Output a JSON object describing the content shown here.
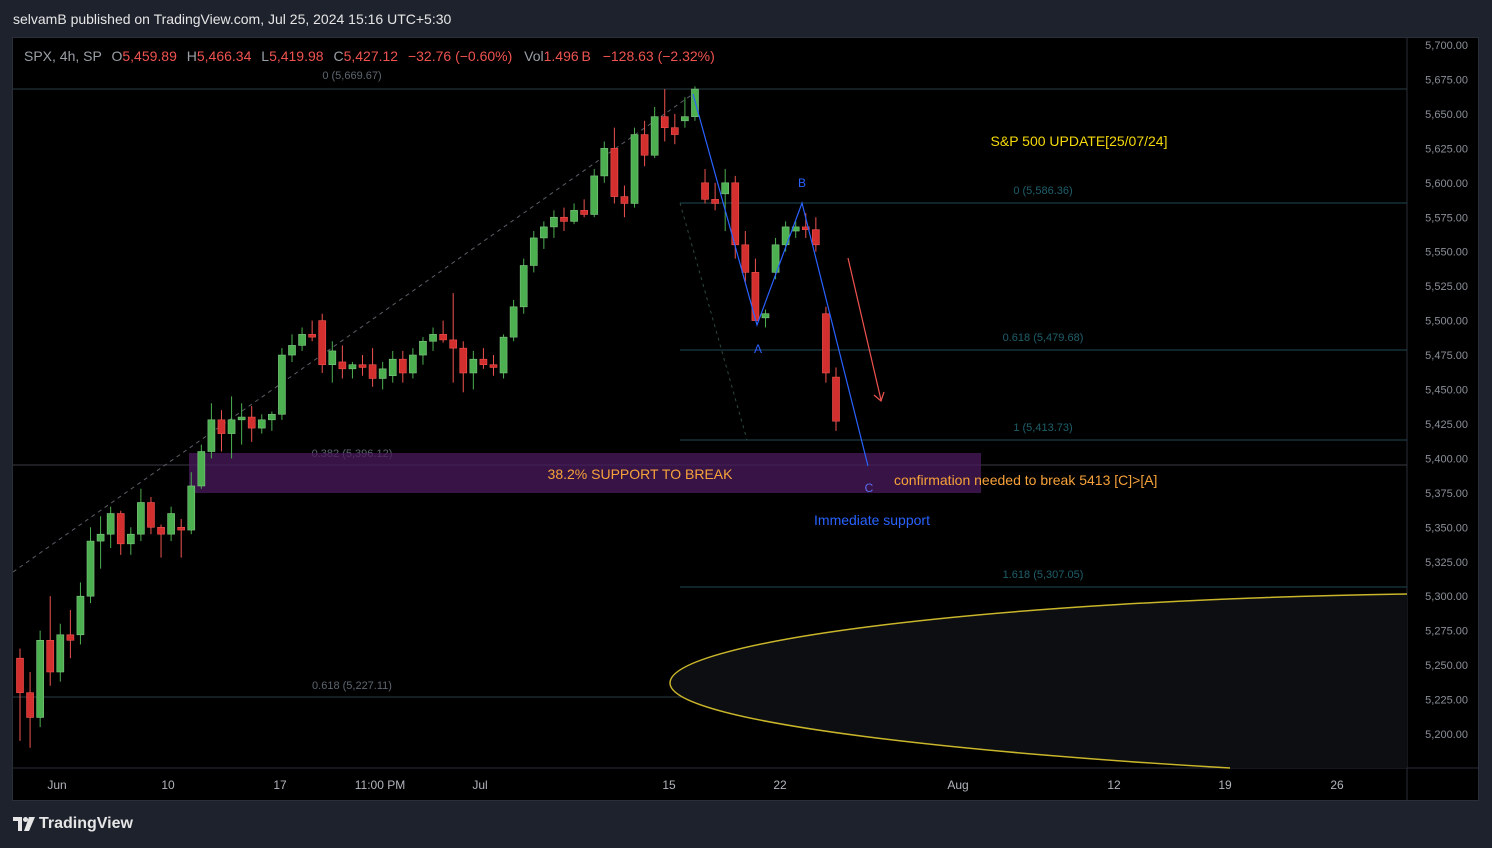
{
  "publisher_line": "selvamB published on TradingView.com, Jul 25, 2024 15:16 UTC+5:30",
  "footer_brand": "TradingView",
  "legend": {
    "symbol": "SPX, 4h, SP",
    "o_label": "O",
    "o_value": "5,459.89",
    "h_label": "H",
    "h_value": "5,466.34",
    "l_label": "L",
    "l_value": "5,419.98",
    "c_label": "C",
    "c_value": "5,427.12",
    "change": "−32.76 (−0.60%)",
    "vol_label": "Vol",
    "vol_value": "1.496 B",
    "vol_change": "−128.63 (−2.32%)"
  },
  "colors": {
    "up": "#26a69a",
    "up_body": "#4caf50",
    "down": "#ef5350",
    "down_body": "#d32f2f",
    "label_orange": "#f7a23a",
    "fib_teal": "#1f5f6b",
    "wave_blue": "#2962ff",
    "title_yellow": "#f5d90a"
  },
  "price_axis": {
    "ticks": [
      "5,700.00",
      "5,675.00",
      "5,650.00",
      "5,625.00",
      "5,600.00",
      "5,575.00",
      "5,550.00",
      "5,525.00",
      "5,500.00",
      "5,475.00",
      "5,450.00",
      "5,425.00",
      "5,400.00",
      "5,375.00",
      "5,350.00",
      "5,325.00",
      "5,300.00",
      "5,275.00",
      "5,250.00",
      "5,225.00",
      "5,200.00"
    ]
  },
  "time_axis": {
    "ticks": [
      "Jun",
      "10",
      "17",
      "11:00 PM",
      "Jul",
      "15",
      "22",
      "Aug",
      "12",
      "19",
      "26"
    ]
  },
  "annotations": {
    "title": "S&P 500 UPDATE[25/07/24]",
    "support_box": "38.2% SUPPORT TO BREAK",
    "confirmation": "confirmation needed to break 5413 [C]>[A]",
    "immediate_support": "Immediate support",
    "wave_a": "A",
    "wave_b": "B",
    "wave_c": "C"
  },
  "fib_levels_left": [
    {
      "label": "0 (5,669.67)"
    },
    {
      "label": "0.382 (5,396.12)"
    },
    {
      "label": "0.618 (5,227.11)"
    }
  ],
  "fib_levels_right": [
    {
      "label": "0 (5,586.36)"
    },
    {
      "label": "0.618 (5,479.68)"
    },
    {
      "label": "1 (5,413.73)"
    },
    {
      "label": "1.618 (5,307.05)"
    }
  ],
  "chart_data": {
    "type": "candlestick",
    "symbol": "SPX",
    "interval": "4h",
    "ylim": [
      5180,
      5710
    ],
    "candles": [
      [
        5255,
        5262,
        5195,
        5230
      ],
      [
        5230,
        5245,
        5190,
        5212
      ],
      [
        5212,
        5275,
        5205,
        5268
      ],
      [
        5268,
        5300,
        5235,
        5245
      ],
      [
        5245,
        5280,
        5238,
        5272
      ],
      [
        5272,
        5290,
        5255,
        5268
      ],
      [
        5272,
        5310,
        5265,
        5300
      ],
      [
        5300,
        5350,
        5295,
        5340
      ],
      [
        5340,
        5358,
        5320,
        5345
      ],
      [
        5345,
        5365,
        5335,
        5360
      ],
      [
        5360,
        5362,
        5330,
        5338
      ],
      [
        5338,
        5350,
        5330,
        5345
      ],
      [
        5345,
        5378,
        5340,
        5368
      ],
      [
        5368,
        5372,
        5345,
        5350
      ],
      [
        5350,
        5352,
        5328,
        5345
      ],
      [
        5345,
        5365,
        5340,
        5360
      ],
      [
        5350,
        5356,
        5328,
        5348
      ],
      [
        5348,
        5390,
        5345,
        5380
      ],
      [
        5380,
        5410,
        5378,
        5405
      ],
      [
        5405,
        5440,
        5400,
        5428
      ],
      [
        5428,
        5435,
        5405,
        5418
      ],
      [
        5418,
        5445,
        5400,
        5428
      ],
      [
        5428,
        5440,
        5410,
        5430
      ],
      [
        5430,
        5438,
        5412,
        5422
      ],
      [
        5422,
        5432,
        5418,
        5428
      ],
      [
        5428,
        5434,
        5420,
        5432
      ],
      [
        5432,
        5480,
        5428,
        5475
      ],
      [
        5475,
        5490,
        5470,
        5482
      ],
      [
        5482,
        5495,
        5478,
        5490
      ],
      [
        5490,
        5500,
        5485,
        5488
      ],
      [
        5500,
        5505,
        5462,
        5468
      ],
      [
        5468,
        5485,
        5455,
        5478
      ],
      [
        5470,
        5482,
        5458,
        5465
      ],
      [
        5465,
        5470,
        5458,
        5468
      ],
      [
        5468,
        5475,
        5460,
        5466
      ],
      [
        5468,
        5480,
        5452,
        5458
      ],
      [
        5458,
        5470,
        5450,
        5465
      ],
      [
        5460,
        5478,
        5455,
        5472
      ],
      [
        5472,
        5478,
        5455,
        5462
      ],
      [
        5462,
        5480,
        5458,
        5475
      ],
      [
        5475,
        5488,
        5468,
        5485
      ],
      [
        5485,
        5495,
        5478,
        5490
      ],
      [
        5490,
        5500,
        5484,
        5486
      ],
      [
        5486,
        5520,
        5455,
        5480
      ],
      [
        5480,
        5485,
        5448,
        5462
      ],
      [
        5462,
        5478,
        5450,
        5472
      ],
      [
        5472,
        5480,
        5465,
        5468
      ],
      [
        5468,
        5475,
        5460,
        5466
      ],
      [
        5462,
        5490,
        5458,
        5488
      ],
      [
        5488,
        5515,
        5485,
        5510
      ],
      [
        5510,
        5545,
        5505,
        5540
      ],
      [
        5540,
        5565,
        5535,
        5560
      ],
      [
        5560,
        5572,
        5552,
        5568
      ],
      [
        5568,
        5580,
        5560,
        5575
      ],
      [
        5575,
        5582,
        5565,
        5572
      ],
      [
        5572,
        5585,
        5570,
        5580
      ],
      [
        5580,
        5588,
        5575,
        5577
      ],
      [
        5577,
        5610,
        5575,
        5605
      ],
      [
        5605,
        5630,
        5600,
        5625
      ],
      [
        5625,
        5640,
        5585,
        5590
      ],
      [
        5590,
        5598,
        5575,
        5585
      ],
      [
        5585,
        5640,
        5582,
        5635
      ],
      [
        5635,
        5645,
        5612,
        5620
      ],
      [
        5620,
        5655,
        5618,
        5648
      ],
      [
        5648,
        5668,
        5630,
        5640
      ],
      [
        5640,
        5650,
        5628,
        5635
      ],
      [
        5645,
        5662,
        5640,
        5648
      ],
      [
        5648,
        5670,
        5645,
        5668
      ],
      [
        5600,
        5610,
        5585,
        5588
      ],
      [
        5588,
        5600,
        5580,
        5585
      ],
      [
        5592,
        5610,
        5565,
        5600
      ],
      [
        5600,
        5605,
        5545,
        5555
      ],
      [
        5555,
        5565,
        5528,
        5535
      ],
      [
        5535,
        5545,
        5500,
        5500
      ],
      [
        5502,
        5508,
        5495,
        5505
      ],
      [
        5535,
        5560,
        5530,
        5555
      ],
      [
        5555,
        5572,
        5550,
        5568
      ],
      [
        5565,
        5572,
        5560,
        5568
      ],
      [
        5568,
        5578,
        5560,
        5566
      ],
      [
        5566,
        5575,
        5550,
        5555
      ],
      [
        5505,
        5510,
        5455,
        5462
      ],
      [
        5459,
        5466,
        5420,
        5427
      ]
    ]
  }
}
